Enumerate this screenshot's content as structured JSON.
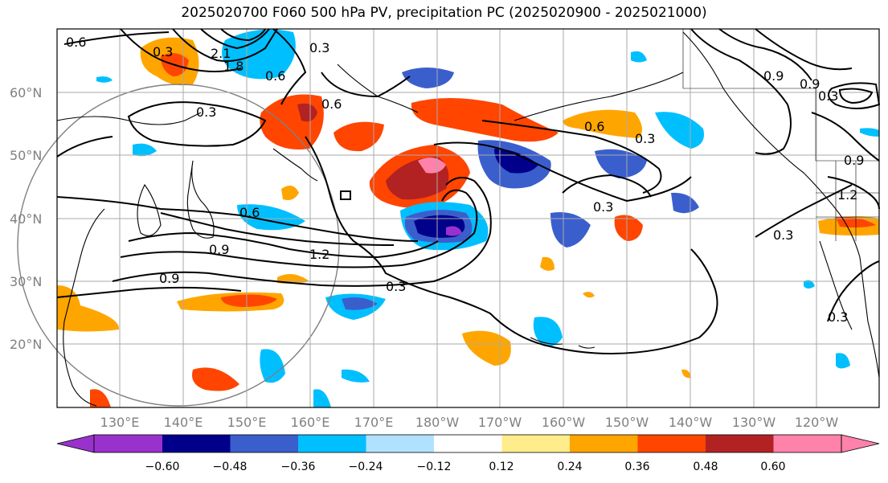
{
  "title": "2025020700 F060 500 hPa PV, precipitation PC (2025020900 - 2025021000)",
  "lat_labels": [
    "60°N",
    "50°N",
    "40°N",
    "30°N",
    "20°N"
  ],
  "lon_labels": [
    "130°E",
    "140°E",
    "150°E",
    "160°E",
    "170°E",
    "180°W",
    "170°W",
    "160°W",
    "150°W",
    "140°W",
    "130°W",
    "120°W"
  ],
  "colorbar": {
    "ticks": [
      "−0.60",
      "−0.48",
      "−0.36",
      "−0.24",
      "−0.12",
      "0.12",
      "0.24",
      "0.36",
      "0.48",
      "0.60"
    ],
    "colors": [
      "#9932CC",
      "#00008B",
      "#3A5FCD",
      "#00BFFF",
      "#B0E2FF",
      "#FFFFFF",
      "#FFEC8B",
      "#FFA500",
      "#FF4500",
      "#B22222",
      "#FF82AB"
    ]
  },
  "contour_labels": [
    "0.6",
    "2.1",
    "1.8",
    "0.3",
    "0.6",
    "0.3",
    "0.6",
    "0.3",
    "0.6",
    "0.9",
    "0.9",
    "1.2",
    "0.3",
    "0.9",
    "0.3",
    "0.6",
    "0.3",
    "0.3",
    "0.9",
    "0.9",
    "0.3",
    "1.2",
    "0.3"
  ]
}
